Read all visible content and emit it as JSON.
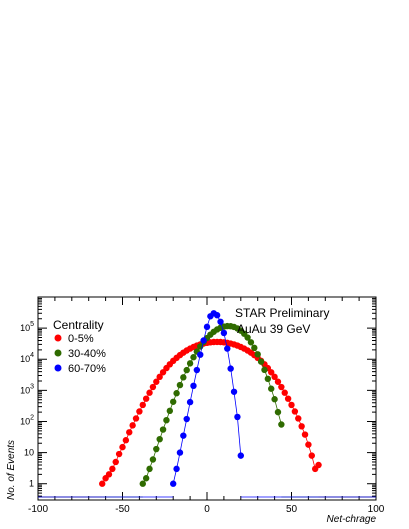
{
  "chart_data": {
    "type": "scatter",
    "title": "",
    "xlabel": "Net-chrage",
    "ylabel": "No. of Events",
    "xlim": [
      -100,
      100
    ],
    "ylim": [
      0.3,
      1000000
    ],
    "yscale": "log",
    "x_ticks": [
      "-100",
      "-50",
      "0",
      "50",
      "100"
    ],
    "y_ticks": [
      {
        "base": "1",
        "exp": ""
      },
      {
        "base": "10",
        "exp": ""
      },
      {
        "base": "10",
        "exp": "2"
      },
      {
        "base": "10",
        "exp": "3"
      },
      {
        "base": "10",
        "exp": "4"
      },
      {
        "base": "10",
        "exp": "5"
      }
    ],
    "annotations": [
      "STAR Preliminary",
      "AuAu 39 GeV"
    ],
    "legend_title": "Centrality",
    "legend_position": "top-left",
    "series": [
      {
        "name": "0-5%",
        "color": "#ff0000",
        "x": [
          -62,
          -60,
          -58,
          -56,
          -54,
          -52,
          -50,
          -48,
          -46,
          -44,
          -42,
          -40,
          -38,
          -36,
          -34,
          -32,
          -30,
          -28,
          -26,
          -24,
          -22,
          -20,
          -18,
          -16,
          -14,
          -12,
          -10,
          -8,
          -6,
          -4,
          -2,
          0,
          2,
          4,
          6,
          8,
          10,
          12,
          14,
          16,
          18,
          20,
          22,
          24,
          26,
          28,
          30,
          32,
          34,
          36,
          38,
          40,
          42,
          44,
          46,
          48,
          50,
          52,
          54,
          56,
          58,
          60,
          62,
          64,
          66
        ],
        "y": [
          1,
          1.5,
          2,
          3,
          5,
          9,
          15,
          25,
          45,
          75,
          125,
          210,
          340,
          540,
          840,
          1280,
          1890,
          2720,
          3810,
          5190,
          6870,
          8860,
          11100,
          13600,
          16300,
          19100,
          22000,
          24800,
          27500,
          29900,
          32000,
          33700,
          35000,
          35800,
          36000,
          35800,
          35000,
          33700,
          32000,
          29900,
          27500,
          24800,
          22000,
          19100,
          16300,
          13600,
          11100,
          8860,
          6870,
          5190,
          3810,
          2720,
          1890,
          1280,
          840,
          540,
          340,
          210,
          125,
          70,
          38,
          18,
          8,
          3,
          4
        ]
      },
      {
        "name": "30-40%",
        "color": "#2f6b00",
        "x": [
          -38,
          -36,
          -34,
          -32,
          -30,
          -28,
          -26,
          -24,
          -22,
          -20,
          -18,
          -16,
          -14,
          -12,
          -10,
          -8,
          -6,
          -4,
          -2,
          0,
          2,
          4,
          6,
          8,
          10,
          12,
          14,
          16,
          18,
          20,
          22,
          24,
          26,
          28,
          30,
          32,
          34,
          36,
          38,
          40,
          42,
          44
        ],
        "y": [
          1,
          1.5,
          3,
          6,
          13,
          27,
          55,
          110,
          220,
          430,
          810,
          1480,
          2620,
          4480,
          7360,
          11600,
          17600,
          25600,
          35800,
          48000,
          61700,
          76200,
          90400,
          102800,
          111800,
          116300,
          115300,
          108800,
          97600,
          83000,
          66300,
          49800,
          35100,
          23200,
          14400,
          8380,
          4570,
          2350,
          1130,
          520,
          200,
          80
        ]
      },
      {
        "name": "60-70%",
        "color": "#0000ff",
        "x": [
          -20,
          -18,
          -16,
          -14,
          -12,
          -10,
          -8,
          -6,
          -4,
          -2,
          0,
          2,
          4,
          6,
          8,
          10,
          12,
          14,
          16,
          18,
          20
        ],
        "y": [
          1,
          3,
          10,
          35,
          120,
          420,
          1400,
          4500,
          14000,
          40000,
          110000,
          240000,
          300000,
          260000,
          160000,
          70000,
          22000,
          5000,
          900,
          140,
          8
        ]
      }
    ]
  }
}
